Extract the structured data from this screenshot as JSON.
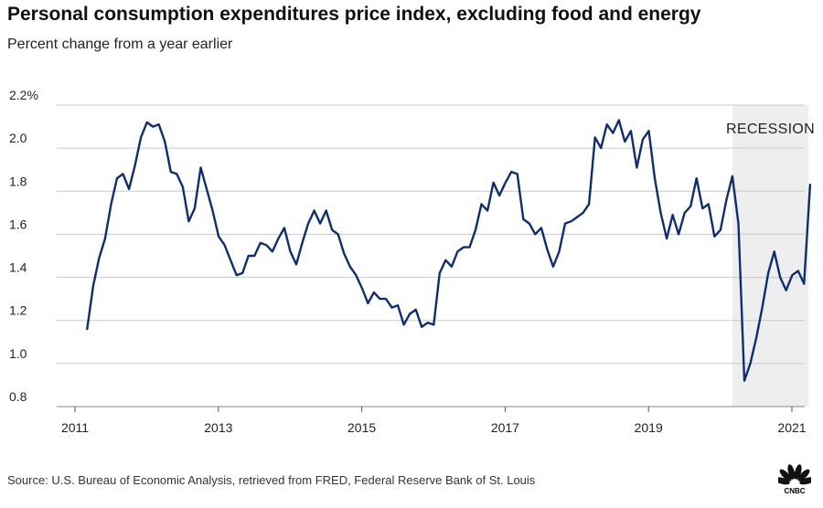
{
  "header": {
    "title": "Personal consumption expenditures price index, excluding food and energy",
    "subtitle": "Percent change from a year earlier"
  },
  "footer": {
    "source": "Source: U.S. Bureau of Economic Analysis, retrieved from FRED, Federal Reserve Bank of St. Louis",
    "logo_text": "CNBC"
  },
  "colors": {
    "line": "#0f2d73",
    "grid": "#c8c8c8",
    "recession_shade": "#eeeeee",
    "logo": "#111111"
  },
  "chart_data": {
    "type": "line",
    "title": "Personal consumption expenditures price index, excluding food and energy",
    "subtitle": "Percent change from a year earlier",
    "xlabel": "",
    "ylabel": "",
    "x_start": 2011.0,
    "x_step_months": 1,
    "x_first_point": 2011.17,
    "xlim": [
      2010.88,
      2021.23
    ],
    "ylim": [
      0.8,
      2.2
    ],
    "yticks": [
      0.8,
      1.0,
      1.2,
      1.4,
      1.6,
      1.8,
      2.0,
      2.2
    ],
    "ytick_labels": [
      "0.8",
      "1.0",
      "1.2",
      "1.4",
      "1.6",
      "1.8",
      "2.0",
      "2.2%"
    ],
    "xticks": [
      2011,
      2013,
      2015,
      2017,
      2019,
      2021
    ],
    "xtick_labels": [
      "2011",
      "2013",
      "2015",
      "2017",
      "2019",
      "2021"
    ],
    "grid": "horizontal",
    "annotations": [
      {
        "type": "shaded_region",
        "label": "RECESSION",
        "x_start": 2020.17,
        "x_end": 2021.23
      }
    ],
    "series": [
      {
        "values": [
          1.16,
          1.36,
          1.49,
          1.58,
          1.74,
          1.86,
          1.88,
          1.81,
          1.92,
          2.05,
          2.12,
          2.1,
          2.11,
          2.03,
          1.89,
          1.88,
          1.82,
          1.66,
          1.72,
          1.91,
          1.81,
          1.71,
          1.59,
          1.55,
          1.48,
          1.41,
          1.42,
          1.5,
          1.5,
          1.56,
          1.55,
          1.52,
          1.58,
          1.63,
          1.52,
          1.46,
          1.56,
          1.65,
          1.71,
          1.65,
          1.71,
          1.62,
          1.6,
          1.51,
          1.45,
          1.41,
          1.35,
          1.28,
          1.33,
          1.3,
          1.3,
          1.26,
          1.27,
          1.18,
          1.23,
          1.25,
          1.17,
          1.19,
          1.18,
          1.42,
          1.48,
          1.45,
          1.52,
          1.54,
          1.54,
          1.62,
          1.74,
          1.71,
          1.84,
          1.78,
          1.84,
          1.89,
          1.88,
          1.67,
          1.65,
          1.6,
          1.63,
          1.53,
          1.45,
          1.52,
          1.65,
          1.66,
          1.68,
          1.7,
          1.74,
          2.05,
          2.0,
          2.11,
          2.07,
          2.13,
          2.03,
          2.08,
          1.91,
          2.04,
          2.08,
          1.86,
          1.7,
          1.58,
          1.69,
          1.6,
          1.7,
          1.73,
          1.86,
          1.72,
          1.74,
          1.59,
          1.62,
          1.76,
          1.87,
          1.65,
          0.92,
          1.0,
          1.12,
          1.26,
          1.42,
          1.52,
          1.4,
          1.34,
          1.41,
          1.43,
          1.37,
          1.83
        ]
      }
    ]
  }
}
